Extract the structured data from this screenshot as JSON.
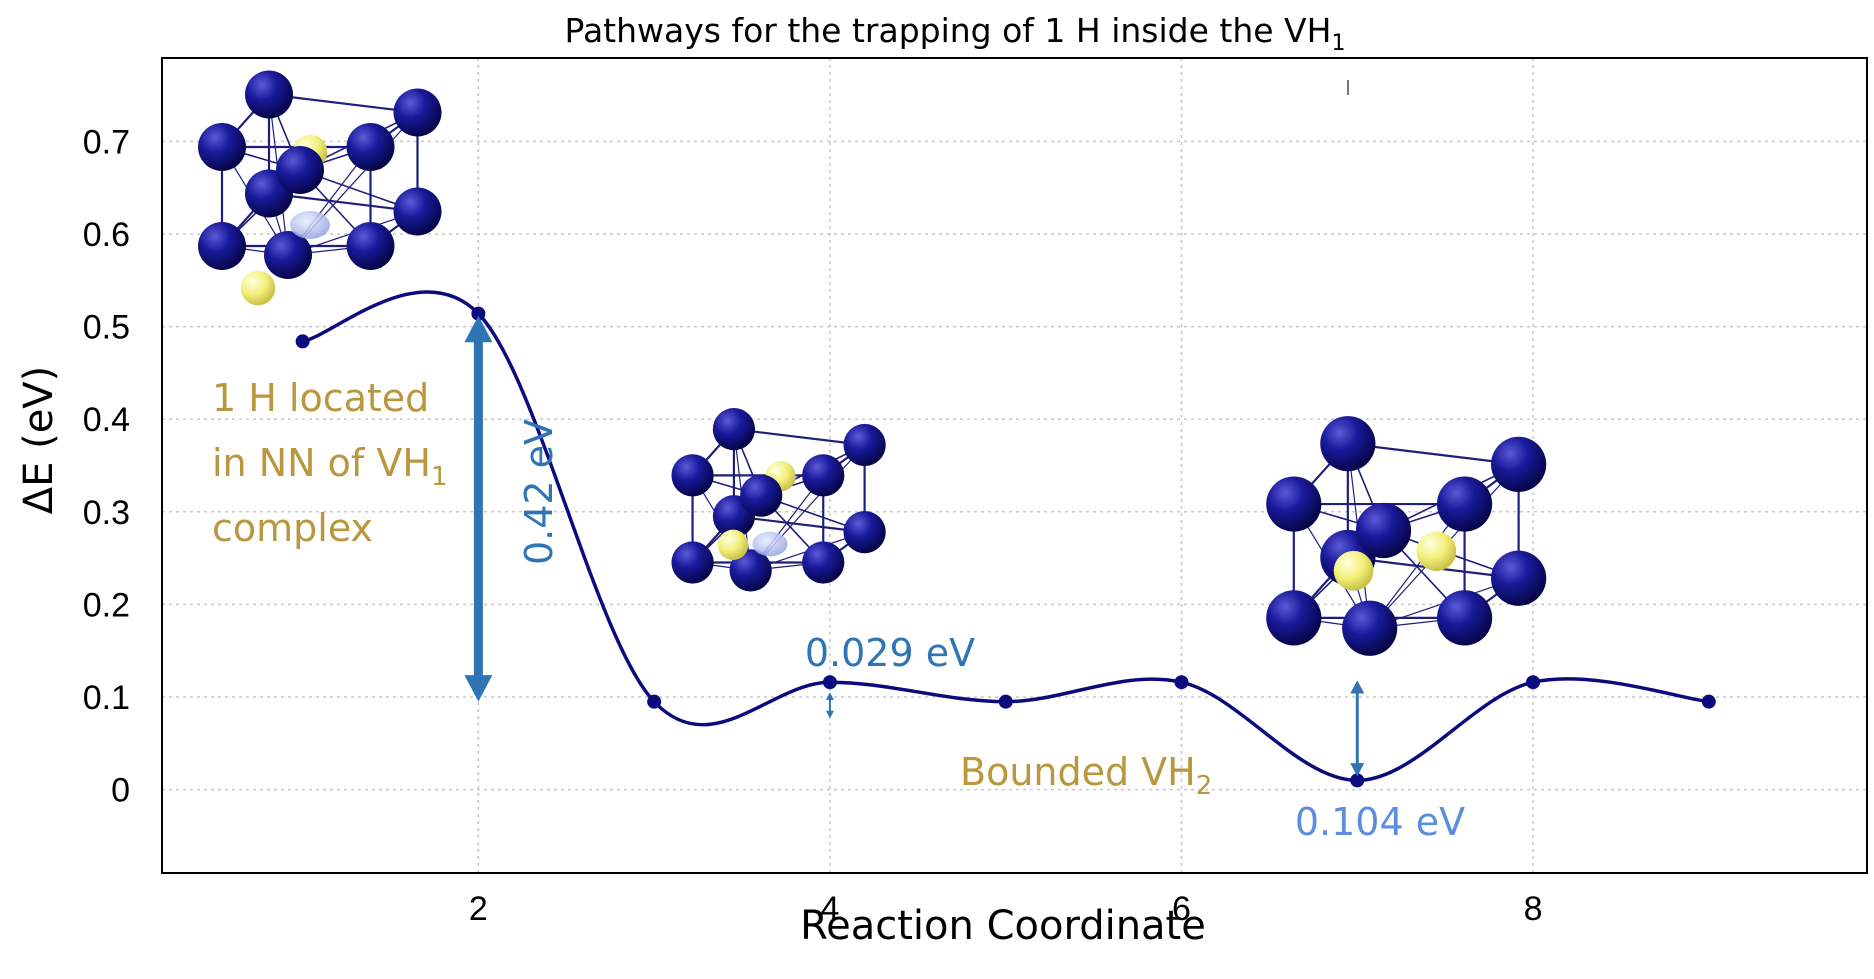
{
  "chart_data": {
    "type": "line",
    "title": "Pathways for the trapping of 1 H inside the VH",
    "title_subscript": "1",
    "xlabel": "Reaction Coordinate",
    "ylabel": "ΔE (eV)",
    "xlim": [
      0.2,
      9.9
    ],
    "ylim": [
      -0.09,
      0.79
    ],
    "x_ticks": [
      2,
      4,
      6,
      8
    ],
    "y_ticks": [
      0,
      0.1,
      0.2,
      0.3,
      0.4,
      0.5,
      0.6,
      0.7
    ],
    "grid": true,
    "series": [
      {
        "name": "ΔE",
        "color": "#0b0b7e",
        "x": [
          1,
          2,
          3,
          4,
          5,
          6,
          7,
          8,
          9
        ],
        "y": [
          0.484,
          0.514,
          0.095,
          0.116,
          0.095,
          0.116,
          0.01,
          0.116,
          0.095
        ]
      }
    ],
    "annotations": {
      "barrier_main": {
        "text": "0.42 eV",
        "color": "#2f75b5"
      },
      "barrier_small": {
        "text": "0.029 eV",
        "color": "#2f75b5"
      },
      "barrier_bound": {
        "text": "0.104 eV",
        "color": "#5b8ee0"
      },
      "label_nn": {
        "lines": [
          "1 H located",
          "in NN of VH",
          "complex"
        ],
        "subscript": "1",
        "color": "#b8973e"
      },
      "label_bounded": {
        "text": "Bounded VH",
        "subscript": "2",
        "color": "#b8973e"
      }
    },
    "colors": {
      "fe_atom": "#1a1a8c",
      "h_atom": "#f3f07a",
      "bond": "#1f1f7a"
    }
  }
}
